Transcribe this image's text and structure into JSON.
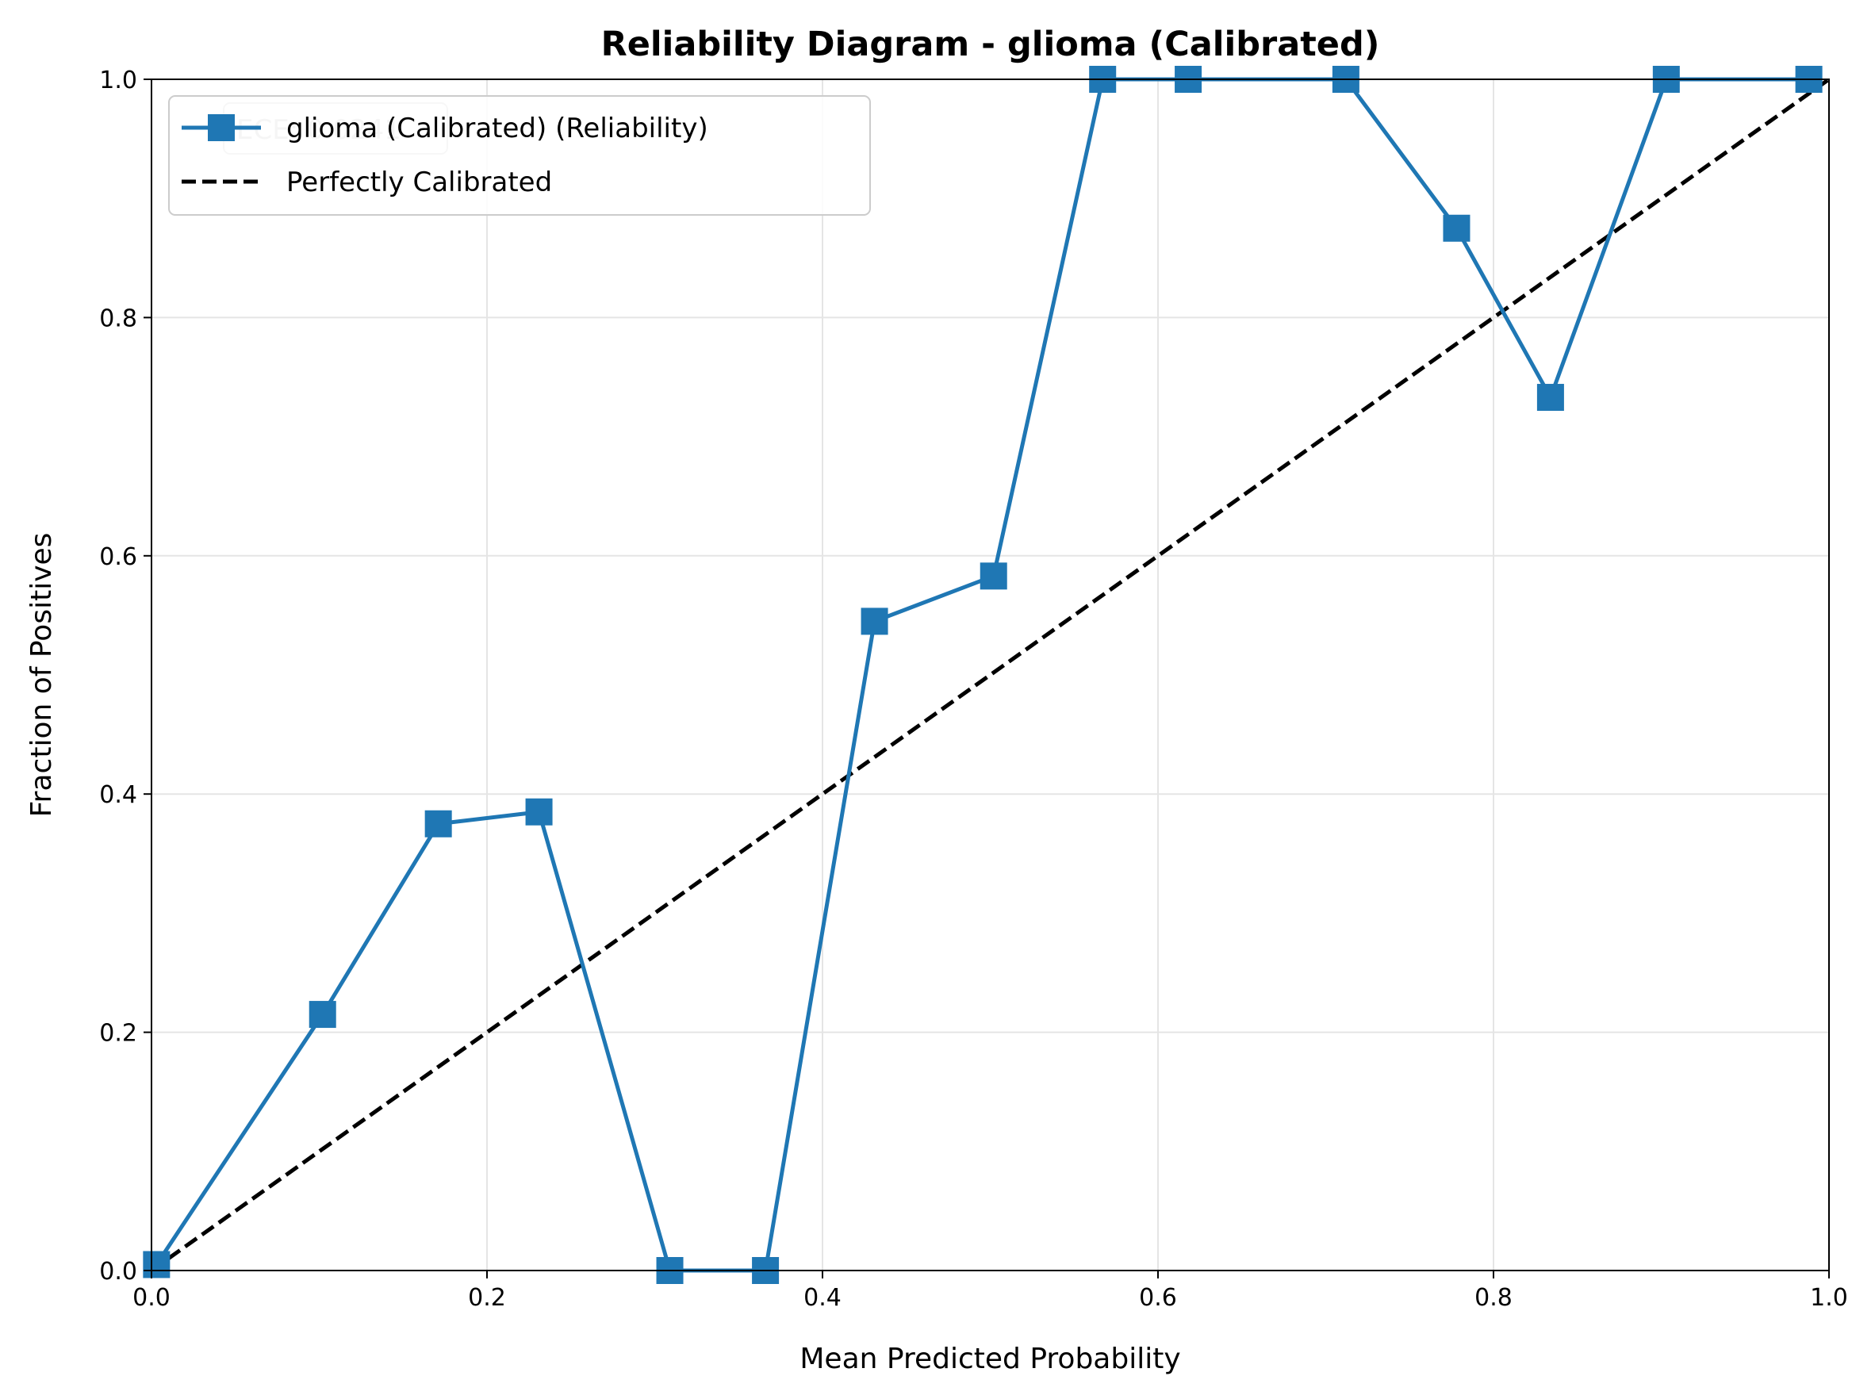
{
  "chart_data": {
    "type": "line",
    "title": "Reliability Diagram - glioma (Calibrated)",
    "xlabel": "Mean Predicted Probability",
    "ylabel": "Fraction of Positives",
    "xlim": [
      0,
      1
    ],
    "ylim": [
      0,
      1
    ],
    "xticks": [
      "0.0",
      "0.2",
      "0.4",
      "0.6",
      "0.8",
      "1.0"
    ],
    "yticks": [
      "0.0",
      "0.2",
      "0.4",
      "0.6",
      "0.8",
      "1.0"
    ],
    "grid": true,
    "legend_position": "upper-left",
    "annotation": "ECE: 0.0241",
    "series": [
      {
        "name": "glioma (Calibrated) (Reliability)",
        "color": "#1f77b4",
        "marker": "square",
        "x": [
          0.003,
          0.102,
          0.171,
          0.231,
          0.309,
          0.366,
          0.431,
          0.502,
          0.567,
          0.618,
          0.712,
          0.778,
          0.834,
          0.903,
          0.988
        ],
        "y": [
          0.005,
          0.215,
          0.375,
          0.385,
          0.0,
          0.0,
          0.545,
          0.583,
          1.0,
          1.0,
          1.0,
          0.875,
          0.733,
          1.0,
          1.0
        ]
      },
      {
        "name": "Perfectly Calibrated",
        "color": "#000000",
        "dash": "dashed",
        "x": [
          0,
          1
        ],
        "y": [
          0,
          1
        ]
      }
    ]
  }
}
